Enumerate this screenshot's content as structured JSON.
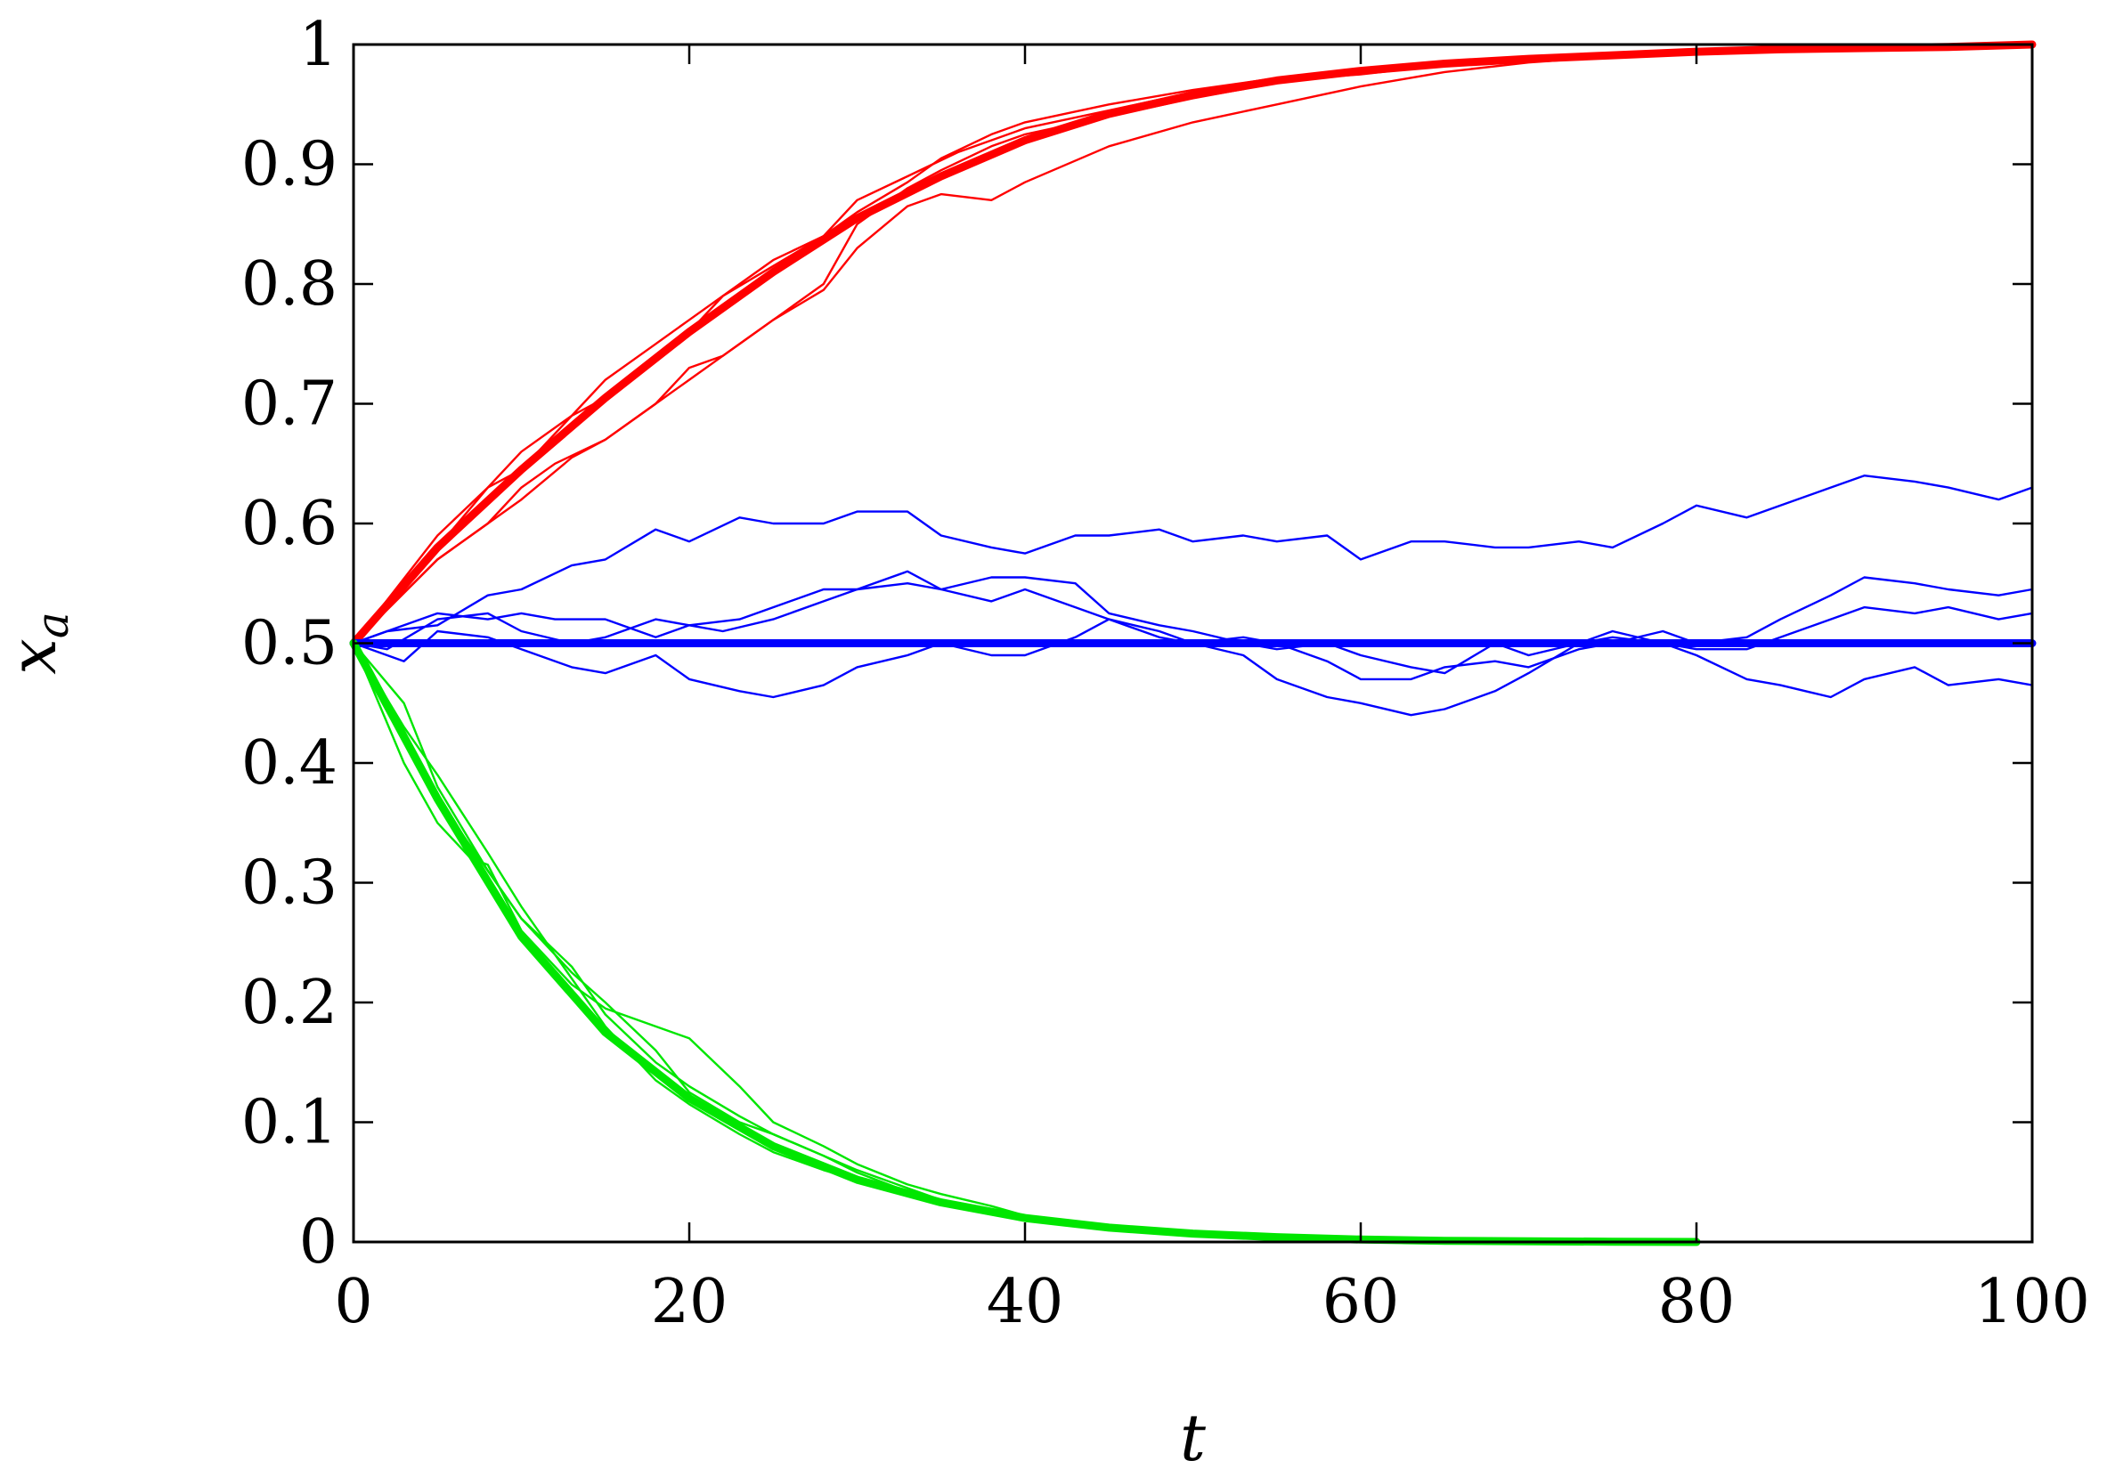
{
  "chart_data": {
    "type": "line",
    "title": "",
    "xlabel": "t",
    "ylabel": "x",
    "ylabel_subscript": "a",
    "xlim": [
      0,
      100
    ],
    "ylim": [
      0,
      1
    ],
    "xticks": [
      0,
      20,
      40,
      60,
      80,
      100
    ],
    "xtick_labels": [
      "0",
      "20",
      "40",
      "60",
      "80",
      "100"
    ],
    "yticks": [
      0,
      0.1,
      0.2,
      0.3,
      0.4,
      0.5,
      0.6,
      0.7,
      0.8,
      0.9,
      1
    ],
    "ytick_labels": [
      "0",
      "0.1",
      "0.2",
      "0.3",
      "0.4",
      "0.5",
      "0.6",
      "0.7",
      "0.8",
      "0.9",
      "1"
    ],
    "grid": false,
    "legend": "none",
    "colors": {
      "red": "#ff0000",
      "blue": "#0000ff",
      "green": "#00e600"
    },
    "series": [
      {
        "color": "red",
        "kind": "mean",
        "x": [
          0,
          5,
          10,
          15,
          20,
          25,
          30,
          35,
          40,
          45,
          50,
          55,
          60,
          65,
          70,
          75,
          80,
          85,
          90,
          95,
          100
        ],
        "y": [
          0.5,
          0.58,
          0.645,
          0.705,
          0.76,
          0.81,
          0.855,
          0.89,
          0.92,
          0.942,
          0.958,
          0.97,
          0.978,
          0.984,
          0.988,
          0.991,
          0.994,
          0.996,
          0.997,
          0.998,
          1.0
        ]
      },
      {
        "color": "red",
        "kind": "sample",
        "x": [
          0,
          5,
          8,
          10,
          13,
          15,
          18,
          20,
          22,
          25,
          28,
          30,
          33,
          36,
          40,
          45,
          50,
          55,
          60,
          65,
          70,
          75,
          80,
          90,
          100
        ],
        "y": [
          0.5,
          0.58,
          0.63,
          0.645,
          0.69,
          0.705,
          0.74,
          0.76,
          0.79,
          0.815,
          0.84,
          0.87,
          0.89,
          0.91,
          0.93,
          0.945,
          0.96,
          0.97,
          0.975,
          0.983,
          0.988,
          0.99,
          0.995,
          0.997,
          1.0
        ]
      },
      {
        "color": "red",
        "kind": "sample",
        "x": [
          0,
          5,
          8,
          10,
          13,
          15,
          18,
          20,
          22,
          25,
          28,
          30,
          33,
          35,
          38,
          40,
          45,
          50,
          55,
          60,
          65,
          70,
          75,
          80,
          90,
          100
        ],
        "y": [
          0.5,
          0.57,
          0.6,
          0.62,
          0.655,
          0.67,
          0.7,
          0.72,
          0.74,
          0.77,
          0.795,
          0.83,
          0.865,
          0.875,
          0.87,
          0.885,
          0.915,
          0.935,
          0.95,
          0.965,
          0.977,
          0.985,
          0.99,
          0.993,
          0.997,
          1.0
        ]
      },
      {
        "color": "red",
        "kind": "sample",
        "x": [
          0,
          5,
          8,
          10,
          13,
          15,
          18,
          20,
          23,
          25,
          28,
          30,
          33,
          35,
          38,
          40,
          45,
          50,
          55,
          60,
          65,
          70,
          80,
          90,
          100
        ],
        "y": [
          0.5,
          0.59,
          0.63,
          0.66,
          0.69,
          0.72,
          0.75,
          0.77,
          0.8,
          0.82,
          0.84,
          0.86,
          0.885,
          0.905,
          0.925,
          0.935,
          0.95,
          0.962,
          0.972,
          0.98,
          0.985,
          0.99,
          0.994,
          0.997,
          1.0
        ]
      },
      {
        "color": "red",
        "kind": "sample",
        "x": [
          0,
          5,
          8,
          10,
          12,
          15,
          18,
          20,
          22,
          25,
          28,
          30,
          33,
          35,
          38,
          40,
          45,
          50,
          55,
          60,
          70,
          80,
          90,
          100
        ],
        "y": [
          0.5,
          0.57,
          0.6,
          0.63,
          0.65,
          0.67,
          0.7,
          0.73,
          0.74,
          0.77,
          0.8,
          0.85,
          0.88,
          0.895,
          0.915,
          0.925,
          0.94,
          0.955,
          0.968,
          0.978,
          0.988,
          0.994,
          0.997,
          1.0
        ]
      },
      {
        "color": "blue",
        "kind": "mean",
        "x": [
          0,
          100
        ],
        "y": [
          0.5,
          0.5
        ]
      },
      {
        "color": "blue",
        "kind": "sample",
        "x": [
          0,
          2,
          5,
          8,
          10,
          13,
          15,
          18,
          20,
          23,
          25,
          28,
          30,
          33,
          35,
          38,
          40,
          43,
          45,
          48,
          50,
          53,
          55,
          58,
          60,
          63,
          65,
          68,
          70,
          73,
          75,
          78,
          80,
          83,
          85,
          88,
          90,
          93,
          95,
          98,
          100
        ],
        "y": [
          0.5,
          0.51,
          0.515,
          0.54,
          0.545,
          0.565,
          0.57,
          0.595,
          0.585,
          0.605,
          0.6,
          0.6,
          0.61,
          0.61,
          0.59,
          0.58,
          0.575,
          0.59,
          0.59,
          0.595,
          0.585,
          0.59,
          0.585,
          0.59,
          0.57,
          0.585,
          0.585,
          0.58,
          0.58,
          0.585,
          0.58,
          0.6,
          0.615,
          0.605,
          0.615,
          0.63,
          0.64,
          0.635,
          0.63,
          0.62,
          0.63
        ]
      },
      {
        "color": "blue",
        "kind": "sample",
        "x": [
          0,
          2,
          5,
          8,
          10,
          12,
          15,
          18,
          20,
          22,
          25,
          28,
          30,
          33,
          35,
          38,
          40,
          43,
          45,
          48,
          50,
          53,
          55,
          58,
          60,
          63,
          65,
          68,
          70,
          73,
          75,
          78,
          80,
          83,
          85,
          88,
          90,
          93,
          95,
          98,
          100
        ],
        "y": [
          0.5,
          0.51,
          0.525,
          0.52,
          0.525,
          0.52,
          0.52,
          0.505,
          0.515,
          0.51,
          0.52,
          0.535,
          0.545,
          0.55,
          0.545,
          0.555,
          0.555,
          0.55,
          0.525,
          0.515,
          0.51,
          0.5,
          0.495,
          0.5,
          0.49,
          0.48,
          0.475,
          0.5,
          0.49,
          0.5,
          0.51,
          0.5,
          0.495,
          0.495,
          0.505,
          0.52,
          0.53,
          0.525,
          0.53,
          0.52,
          0.525
        ]
      },
      {
        "color": "blue",
        "kind": "sample",
        "x": [
          0,
          3,
          5,
          8,
          10,
          13,
          15,
          18,
          20,
          23,
          25,
          28,
          30,
          33,
          35,
          38,
          40,
          43,
          45,
          48,
          50,
          53,
          55,
          58,
          60,
          63,
          65,
          68,
          70,
          73,
          75,
          78,
          80,
          83,
          85,
          88,
          90,
          93,
          95,
          98,
          100
        ],
        "y": [
          0.5,
          0.485,
          0.51,
          0.505,
          0.495,
          0.48,
          0.475,
          0.49,
          0.47,
          0.46,
          0.455,
          0.465,
          0.48,
          0.49,
          0.5,
          0.49,
          0.49,
          0.505,
          0.52,
          0.51,
          0.5,
          0.49,
          0.47,
          0.455,
          0.45,
          0.44,
          0.445,
          0.46,
          0.475,
          0.5,
          0.505,
          0.5,
          0.49,
          0.47,
          0.465,
          0.455,
          0.47,
          0.48,
          0.465,
          0.47,
          0.465
        ]
      },
      {
        "color": "blue",
        "kind": "sample",
        "x": [
          0,
          2,
          5,
          8,
          10,
          13,
          15,
          18,
          20,
          23,
          25,
          28,
          30,
          33,
          35,
          38,
          40,
          43,
          45,
          48,
          50,
          53,
          55,
          58,
          60,
          63,
          65,
          68,
          70,
          73,
          75,
          78,
          80,
          83,
          85,
          88,
          90,
          93,
          95,
          98,
          100
        ],
        "y": [
          0.5,
          0.495,
          0.52,
          0.525,
          0.51,
          0.5,
          0.505,
          0.52,
          0.515,
          0.52,
          0.53,
          0.545,
          0.545,
          0.56,
          0.545,
          0.535,
          0.545,
          0.53,
          0.52,
          0.505,
          0.5,
          0.505,
          0.5,
          0.485,
          0.47,
          0.47,
          0.48,
          0.485,
          0.48,
          0.495,
          0.5,
          0.51,
          0.5,
          0.505,
          0.52,
          0.54,
          0.555,
          0.55,
          0.545,
          0.54,
          0.545
        ]
      },
      {
        "color": "green",
        "kind": "mean",
        "x": [
          0,
          5,
          10,
          15,
          20,
          25,
          30,
          35,
          40,
          45,
          50,
          55,
          60,
          65,
          70,
          75,
          80
        ],
        "y": [
          0.5,
          0.37,
          0.255,
          0.175,
          0.12,
          0.08,
          0.052,
          0.033,
          0.02,
          0.012,
          0.007,
          0.004,
          0.002,
          0.001,
          0.0005,
          0.0002,
          0.0
        ]
      },
      {
        "color": "green",
        "kind": "sample",
        "x": [
          0,
          3,
          5,
          8,
          10,
          13,
          15,
          18,
          20,
          23,
          25,
          28,
          30,
          33,
          35,
          38,
          40,
          45,
          50,
          55,
          60,
          65,
          70,
          76
        ],
        "y": [
          0.5,
          0.43,
          0.39,
          0.325,
          0.28,
          0.22,
          0.18,
          0.135,
          0.115,
          0.09,
          0.075,
          0.06,
          0.052,
          0.04,
          0.032,
          0.024,
          0.018,
          0.01,
          0.006,
          0.003,
          0.002,
          0.001,
          0.0005,
          0.0
        ]
      },
      {
        "color": "green",
        "kind": "sample",
        "x": [
          0,
          3,
          5,
          7,
          8,
          10,
          13,
          15,
          18,
          20,
          23,
          25,
          28,
          30,
          33,
          35,
          38,
          40,
          45,
          50,
          55,
          60,
          65,
          70,
          76
        ],
        "y": [
          0.5,
          0.4,
          0.35,
          0.32,
          0.315,
          0.26,
          0.215,
          0.195,
          0.18,
          0.17,
          0.13,
          0.1,
          0.08,
          0.065,
          0.048,
          0.04,
          0.03,
          0.022,
          0.012,
          0.007,
          0.004,
          0.002,
          0.001,
          0.0005,
          0.0
        ]
      },
      {
        "color": "green",
        "kind": "sample",
        "x": [
          0,
          3,
          5,
          8,
          10,
          13,
          15,
          18,
          20,
          23,
          25,
          28,
          30,
          33,
          35,
          38,
          40,
          45,
          50,
          55,
          60,
          65,
          70,
          76
        ],
        "y": [
          0.5,
          0.42,
          0.37,
          0.31,
          0.27,
          0.225,
          0.2,
          0.16,
          0.125,
          0.1,
          0.09,
          0.072,
          0.06,
          0.045,
          0.035,
          0.026,
          0.02,
          0.012,
          0.006,
          0.003,
          0.002,
          0.001,
          0.0005,
          0.0
        ]
      },
      {
        "color": "green",
        "kind": "sample",
        "x": [
          0,
          3,
          5,
          8,
          10,
          13,
          15,
          18,
          20,
          23,
          25,
          28,
          30,
          33,
          35,
          38,
          40,
          45,
          50,
          55,
          60,
          65,
          70,
          76
        ],
        "y": [
          0.5,
          0.45,
          0.38,
          0.31,
          0.27,
          0.23,
          0.19,
          0.15,
          0.13,
          0.105,
          0.09,
          0.072,
          0.058,
          0.042,
          0.034,
          0.025,
          0.018,
          0.01,
          0.006,
          0.003,
          0.002,
          0.001,
          0.0005,
          0.0
        ]
      }
    ]
  }
}
